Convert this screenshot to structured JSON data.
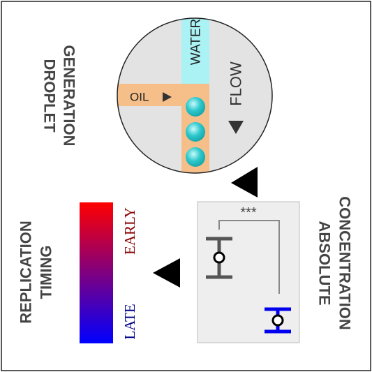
{
  "droplet_generation": {
    "heading_line1": "DROPLET",
    "heading_line2": "GENERATION",
    "water_label": "WATER",
    "flow_label": "FLOW",
    "oil_label": "OIL",
    "colors": {
      "circle_bg": "#e3e3e3",
      "water": "#aaf2f4",
      "oil": "#f6bf8a",
      "droplet": "#2ec8cc",
      "arrow": "#333333"
    }
  },
  "absolute_concentration": {
    "heading_line1": "ABSOLUTE",
    "heading_line2": "CONCENTRATION",
    "significance": "***",
    "colors": {
      "panel_bg": "#eeeeee",
      "early_marker": "#555555",
      "late_marker": "#0000ee"
    }
  },
  "replication_timing": {
    "heading_line1": "REPLICATION",
    "heading_line2": "TIMING",
    "early_label": "EARLY",
    "late_label": "LATE",
    "colors": {
      "early": "#ff0000",
      "late": "#0000ff",
      "early_text": "#8b0000",
      "late_text": "#00008b"
    }
  }
}
